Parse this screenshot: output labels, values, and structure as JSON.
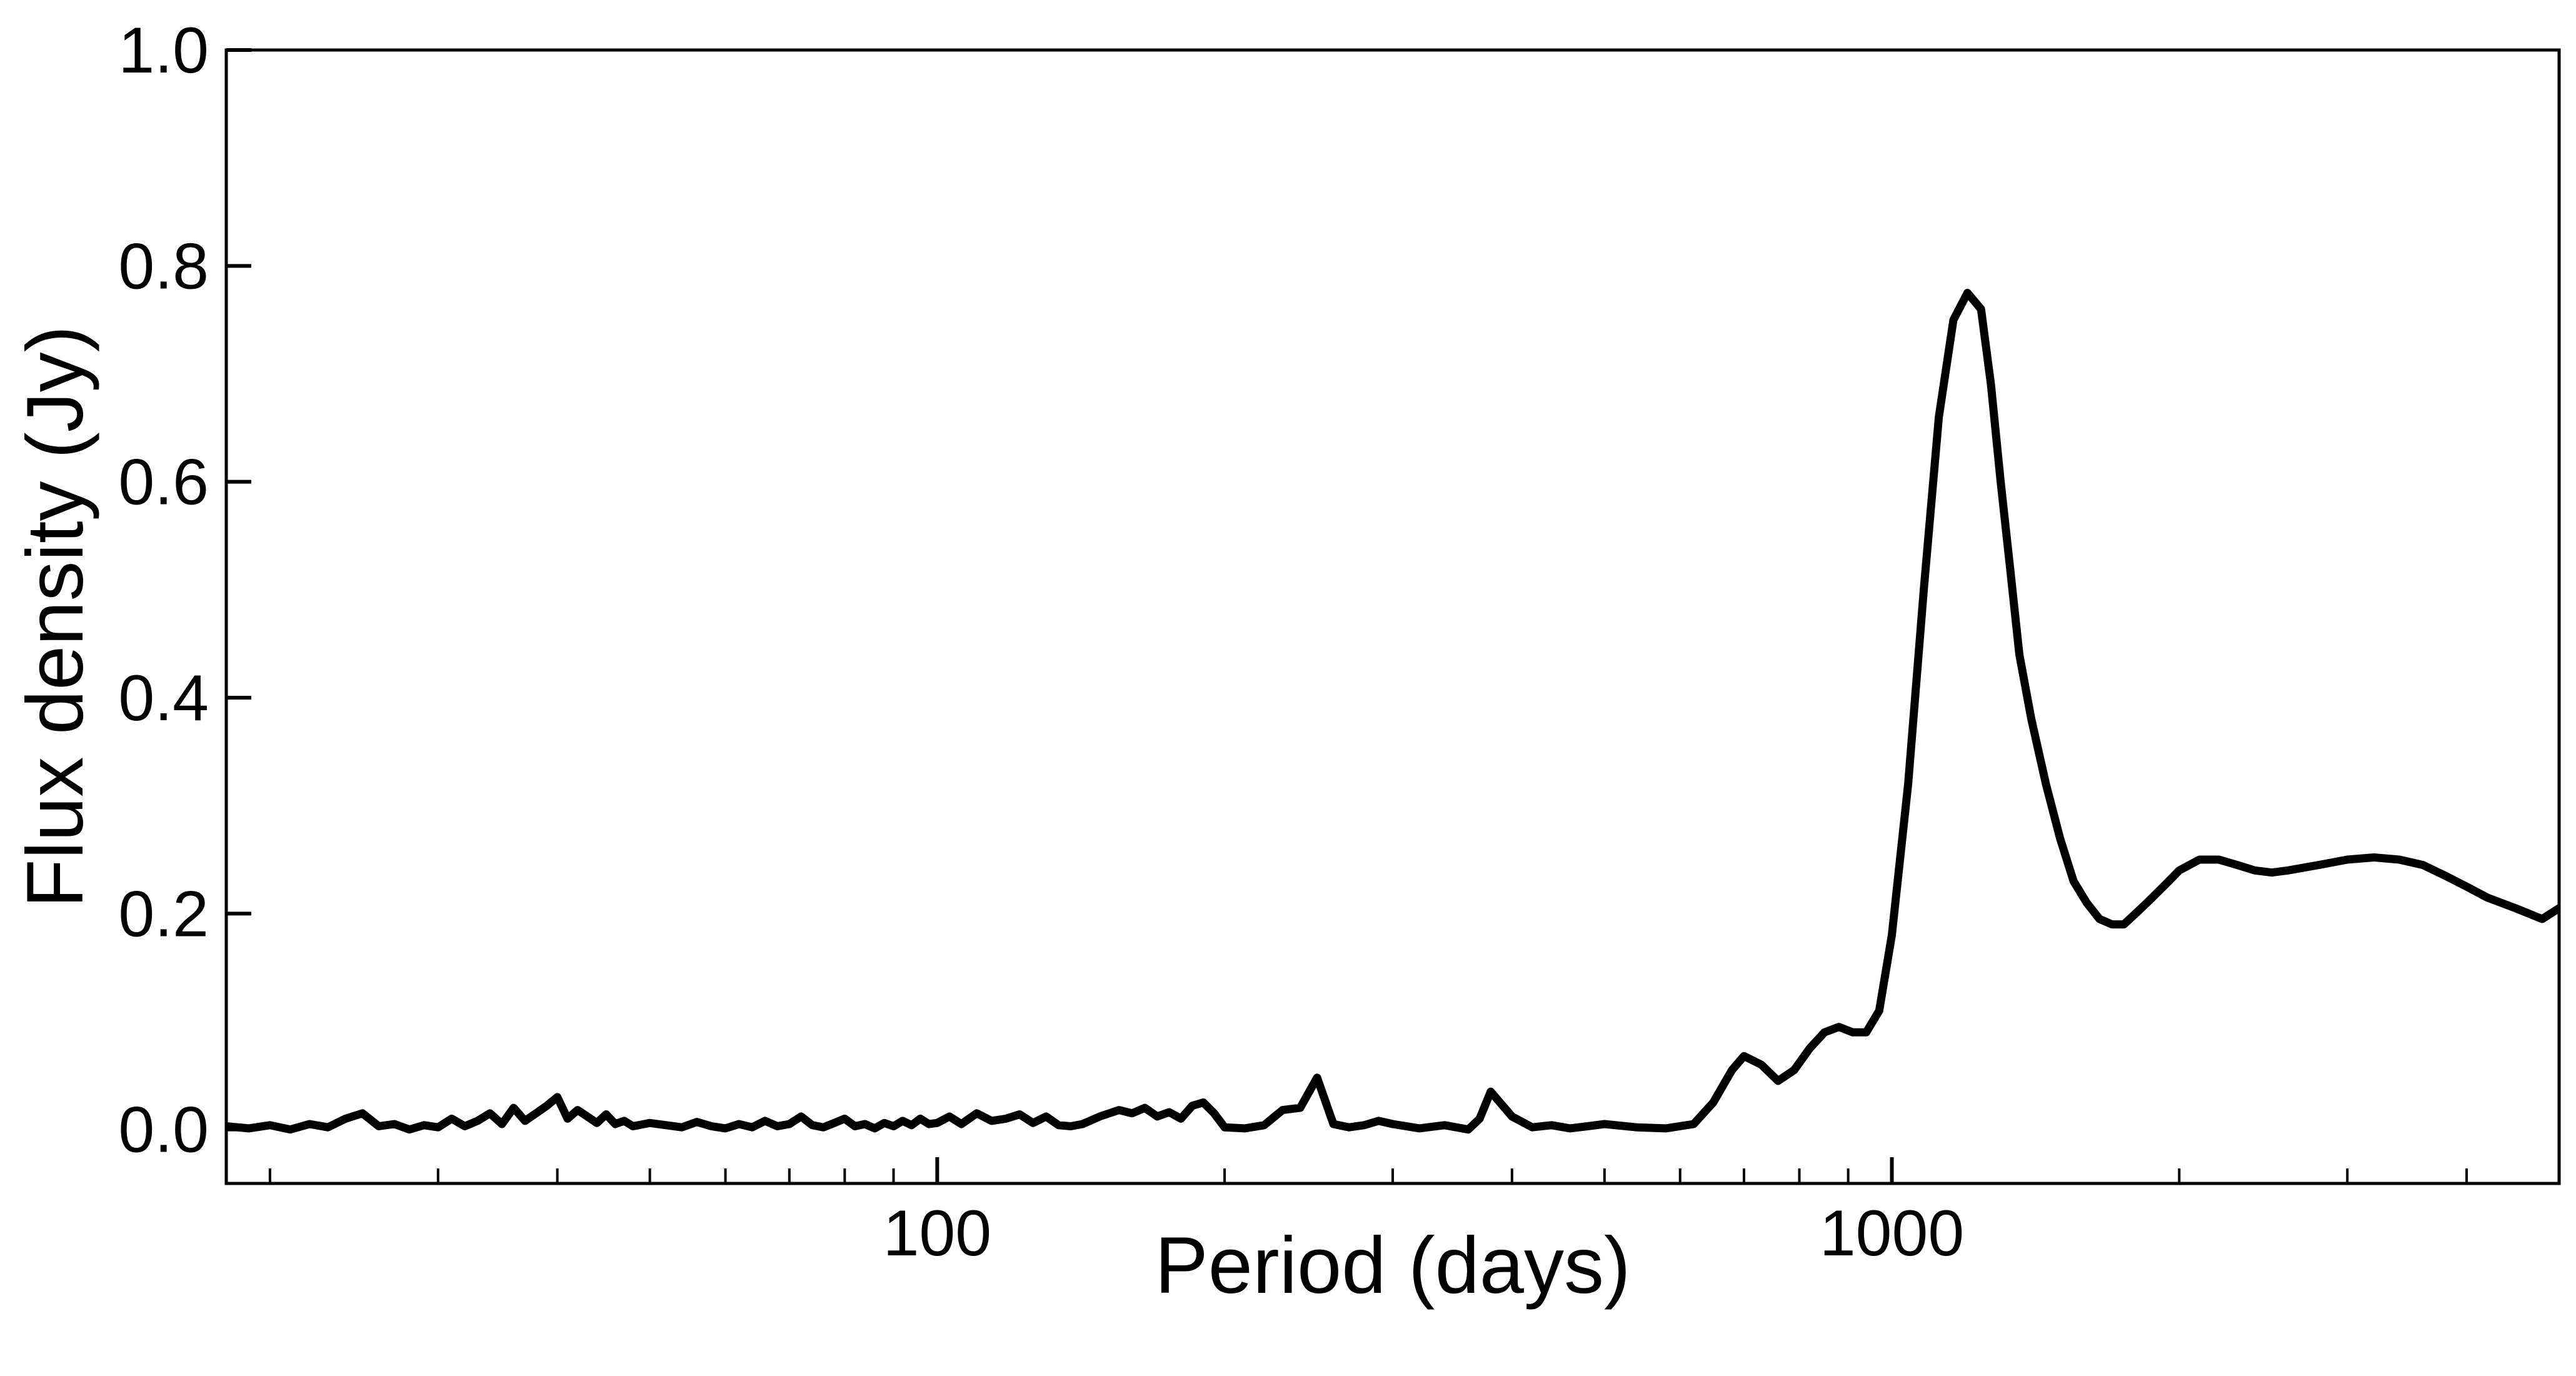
{
  "chart_data": {
    "type": "line",
    "title": "",
    "xlabel": "Period (days)",
    "ylabel": "Flux density (Jy)",
    "x_scale": "log",
    "xlim": [
      18,
      5000
    ],
    "ylim": [
      -0.05,
      1.0
    ],
    "grid": false,
    "legend": "none",
    "line_color": "#000000",
    "x_tick_labels": [
      "100",
      "1000"
    ],
    "x_major_ticks": [
      100,
      1000
    ],
    "x_minor_ticks": [
      20,
      30,
      40,
      50,
      60,
      70,
      80,
      90,
      200,
      300,
      400,
      500,
      600,
      700,
      800,
      900,
      2000,
      3000,
      4000
    ],
    "y_ticks": [
      0.0,
      0.2,
      0.4,
      0.6,
      0.8,
      1.0
    ],
    "y_tick_labels": [
      "0.0",
      "0.2",
      "0.4",
      "0.6",
      "0.8",
      "1.0"
    ],
    "series": [
      {
        "x": [
          18,
          19,
          20,
          21,
          22,
          23,
          24,
          25,
          26,
          27,
          28,
          29,
          30,
          31,
          32,
          33,
          34,
          35,
          36,
          37,
          38,
          39,
          40,
          41,
          42,
          43,
          44,
          45,
          46,
          47,
          48,
          50,
          52,
          54,
          56,
          58,
          60,
          62,
          64,
          66,
          68,
          70,
          72,
          74,
          76,
          78,
          80,
          82,
          84,
          86,
          88,
          90,
          92,
          94,
          96,
          98,
          100,
          103,
          106,
          110,
          114,
          118,
          122,
          126,
          130,
          134,
          138,
          142,
          148,
          155,
          160,
          165,
          170,
          175,
          180,
          185,
          190,
          195,
          200,
          210,
          220,
          230,
          240,
          250,
          260,
          270,
          280,
          290,
          300,
          320,
          340,
          360,
          370,
          380,
          400,
          420,
          440,
          460,
          480,
          500,
          540,
          580,
          620,
          650,
          680,
          700,
          730,
          760,
          790,
          820,
          850,
          880,
          910,
          940,
          970,
          1000,
          1040,
          1080,
          1120,
          1160,
          1200,
          1240,
          1270,
          1300,
          1330,
          1360,
          1400,
          1450,
          1500,
          1550,
          1600,
          1650,
          1700,
          1750,
          1800,
          1850,
          1900,
          1950,
          2000,
          2100,
          2200,
          2300,
          2400,
          2500,
          2600,
          2800,
          3000,
          3200,
          3400,
          3600,
          3800,
          4000,
          4200,
          4500,
          4800,
          5000
        ],
        "y": [
          0.003,
          0.001,
          0.004,
          0.0,
          0.005,
          0.002,
          0.01,
          0.015,
          0.003,
          0.005,
          0.0,
          0.004,
          0.002,
          0.01,
          0.003,
          0.008,
          0.015,
          0.005,
          0.02,
          0.008,
          0.015,
          0.022,
          0.03,
          0.01,
          0.018,
          0.012,
          0.006,
          0.014,
          0.005,
          0.008,
          0.003,
          0.006,
          0.004,
          0.002,
          0.007,
          0.003,
          0.001,
          0.005,
          0.002,
          0.008,
          0.003,
          0.005,
          0.012,
          0.004,
          0.002,
          0.006,
          0.01,
          0.003,
          0.005,
          0.001,
          0.006,
          0.003,
          0.008,
          0.004,
          0.01,
          0.005,
          0.006,
          0.012,
          0.005,
          0.015,
          0.008,
          0.01,
          0.014,
          0.006,
          0.012,
          0.004,
          0.003,
          0.005,
          0.012,
          0.018,
          0.015,
          0.02,
          0.012,
          0.016,
          0.01,
          0.022,
          0.025,
          0.015,
          0.002,
          0.001,
          0.004,
          0.018,
          0.02,
          0.048,
          0.005,
          0.002,
          0.004,
          0.008,
          0.005,
          0.001,
          0.004,
          0.0,
          0.01,
          0.035,
          0.012,
          0.002,
          0.004,
          0.001,
          0.003,
          0.005,
          0.002,
          0.001,
          0.005,
          0.025,
          0.055,
          0.068,
          0.06,
          0.045,
          0.055,
          0.075,
          0.09,
          0.095,
          0.09,
          0.09,
          0.11,
          0.18,
          0.32,
          0.5,
          0.66,
          0.75,
          0.775,
          0.76,
          0.69,
          0.6,
          0.52,
          0.44,
          0.38,
          0.32,
          0.27,
          0.23,
          0.21,
          0.195,
          0.19,
          0.19,
          0.2,
          0.21,
          0.22,
          0.23,
          0.24,
          0.25,
          0.25,
          0.245,
          0.24,
          0.238,
          0.24,
          0.245,
          0.25,
          0.252,
          0.25,
          0.245,
          0.235,
          0.225,
          0.215,
          0.205,
          0.195,
          0.205
        ]
      }
    ]
  }
}
